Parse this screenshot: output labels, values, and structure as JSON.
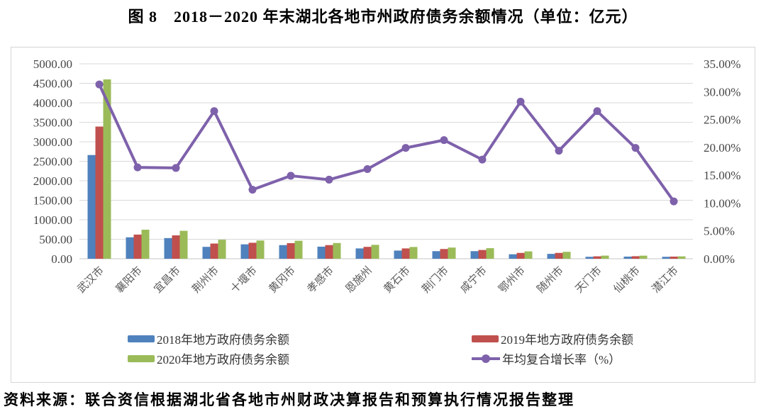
{
  "chart_data": {
    "type": "bar",
    "title": "图 8　2018－2020 年末湖北各地市州政府债务余额情况（单位：亿元）",
    "unit": "亿元",
    "categories": [
      "武汉市",
      "襄阳市",
      "宜昌市",
      "荆州市",
      "十堰市",
      "黄冈市",
      "孝感市",
      "恩施州",
      "黄石市",
      "荆门市",
      "咸宁市",
      "鄂州市",
      "随州市",
      "天门市",
      "仙桃市",
      "潜江市"
    ],
    "series": [
      {
        "name": "2018年地方政府债务余额",
        "type": "bar",
        "axis": "left",
        "color": "#4F81BD",
        "values": [
          2660,
          550,
          530,
          305,
          370,
          350,
          310,
          265,
          210,
          195,
          195,
          115,
          125,
          50,
          55,
          50
        ]
      },
      {
        "name": "2019年地方政府债务余额",
        "type": "bar",
        "axis": "left",
        "color": "#C0504D",
        "values": [
          3390,
          620,
          600,
          390,
          410,
          400,
          350,
          305,
          265,
          250,
          225,
          150,
          150,
          62,
          65,
          55
        ]
      },
      {
        "name": "2020年地方政府债务余额",
        "type": "bar",
        "axis": "left",
        "color": "#9BBB59",
        "values": [
          4600,
          745,
          717,
          488,
          468,
          462,
          404,
          357,
          302,
          287,
          271,
          189,
          178,
          80,
          79,
          61
        ]
      },
      {
        "name": "年均复合增长率（%）",
        "type": "line",
        "axis": "right",
        "color": "#7E61AB",
        "values": [
          31.3,
          16.4,
          16.3,
          26.5,
          12.4,
          14.9,
          14.2,
          16.1,
          19.9,
          21.3,
          17.8,
          28.2,
          19.4,
          26.5,
          19.9,
          10.3
        ]
      }
    ],
    "left_axis": {
      "min": 0,
      "max": 5000,
      "step": 500,
      "decimals": 2,
      "suffix": ""
    },
    "right_axis": {
      "min": 0,
      "max": 35,
      "step": 5,
      "decimals": 2,
      "suffix": "%"
    },
    "grid": true,
    "legend_position": "bottom",
    "grid_color": "#d9d9d9",
    "tick_label_color": "#454545",
    "category_label_color": "#595959"
  },
  "source_note": "资料来源：联合资信根据湖北省各地市州财政决算报告和预算执行情况报告整理"
}
